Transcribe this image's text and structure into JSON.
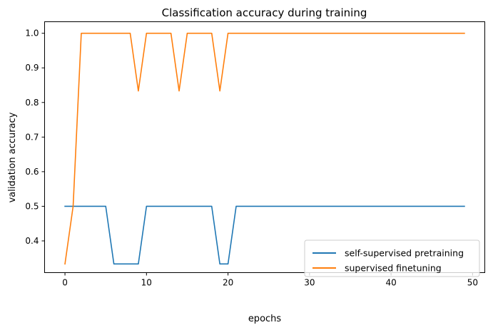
{
  "chart_data": {
    "type": "line",
    "title": "Classification accuracy during training",
    "xlabel": "epochs",
    "ylabel": "validation accuracy",
    "xlim": [
      -2.5,
      51.5
    ],
    "ylim": [
      0.3083,
      1.0333
    ],
    "xticks": [
      0,
      10,
      20,
      30,
      40,
      50
    ],
    "yticks": [
      0.4,
      0.5,
      0.6,
      0.7,
      0.8,
      0.9,
      1.0
    ],
    "xtick_labels": [
      "0",
      "10",
      "20",
      "30",
      "40",
      "50"
    ],
    "ytick_labels": [
      "0.4",
      "0.5",
      "0.6",
      "0.7",
      "0.8",
      "0.9",
      "1.0"
    ],
    "grid": false,
    "legend_position": "lower-right",
    "x": [
      0,
      1,
      2,
      3,
      4,
      5,
      6,
      7,
      8,
      9,
      10,
      11,
      12,
      13,
      14,
      15,
      16,
      17,
      18,
      19,
      20,
      21,
      22,
      23,
      24,
      25,
      26,
      27,
      28,
      29,
      30,
      31,
      32,
      33,
      34,
      35,
      36,
      37,
      38,
      39,
      40,
      41,
      42,
      43,
      44,
      45,
      46,
      47,
      48,
      49
    ],
    "series": [
      {
        "name": "self-supervised pretraining",
        "color": "#1f77b4",
        "values": [
          0.5,
          0.5,
          0.5,
          0.5,
          0.5,
          0.5,
          0.3333,
          0.3333,
          0.3333,
          0.3333,
          0.5,
          0.5,
          0.5,
          0.5,
          0.5,
          0.5,
          0.5,
          0.5,
          0.5,
          0.3333,
          0.3333,
          0.5,
          0.5,
          0.5,
          0.5,
          0.5,
          0.5,
          0.5,
          0.5,
          0.5,
          0.5,
          0.5,
          0.5,
          0.5,
          0.5,
          0.5,
          0.5,
          0.5,
          0.5,
          0.5,
          0.5,
          0.5,
          0.5,
          0.5,
          0.5,
          0.5,
          0.5,
          0.5,
          0.5,
          0.5
        ]
      },
      {
        "name": "supervised finetuning",
        "color": "#ff7f0e",
        "values": [
          0.3333,
          0.5,
          1.0,
          1.0,
          1.0,
          1.0,
          1.0,
          1.0,
          1.0,
          0.8333,
          1.0,
          1.0,
          1.0,
          1.0,
          0.8333,
          1.0,
          1.0,
          1.0,
          1.0,
          0.8333,
          1.0,
          1.0,
          1.0,
          1.0,
          1.0,
          1.0,
          1.0,
          1.0,
          1.0,
          1.0,
          1.0,
          1.0,
          1.0,
          1.0,
          1.0,
          1.0,
          1.0,
          1.0,
          1.0,
          1.0,
          1.0,
          1.0,
          1.0,
          1.0,
          1.0,
          1.0,
          1.0,
          1.0,
          1.0,
          1.0
        ]
      }
    ]
  }
}
